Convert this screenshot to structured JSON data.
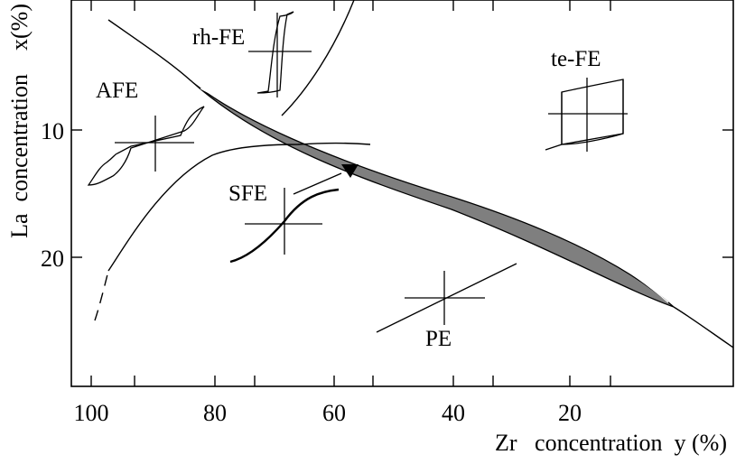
{
  "axes": {
    "x_title": "Zr   concentration  y (%)",
    "y_title": "La  concentration    x(%)",
    "x_tick_labels": [
      "100",
      "80",
      "60",
      "40",
      "20"
    ],
    "y_tick_labels": [
      "10",
      "20"
    ],
    "x_ticks_at": [
      100,
      80,
      60,
      40,
      20
    ],
    "y_ticks_at": [
      10,
      20
    ],
    "x_range": [
      100,
      0
    ],
    "y_range": [
      0,
      30
    ],
    "x_reversed": true,
    "y_inverted": true
  },
  "phases": {
    "afe": "AFE",
    "rh_fe": "rh-FE",
    "te_fe": "te-FE",
    "sfe": "SFE",
    "pe": "PE"
  },
  "colors": {
    "line": "#000000",
    "sfe_region": "#7f7f7f",
    "background": "#ffffff"
  }
}
